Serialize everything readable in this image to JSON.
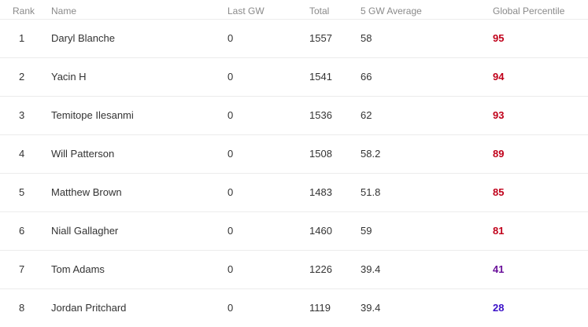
{
  "headers": {
    "rank": "Rank",
    "name": "Name",
    "last_gw": "Last GW",
    "total": "Total",
    "avg5": "5 GW Average",
    "percentile": "Global Percentile"
  },
  "colors": {
    "percentile_high": "#c0001a",
    "percentile_mid": "#6a0f9a",
    "percentile_low": "#3a10c8"
  },
  "rows": [
    {
      "rank": "1",
      "name": "Daryl Blanche",
      "last_gw": "0",
      "total": "1557",
      "avg5": "58",
      "percentile": "95",
      "percentile_color": "#c0001a"
    },
    {
      "rank": "2",
      "name": "Yacin H",
      "last_gw": "0",
      "total": "1541",
      "avg5": "66",
      "percentile": "94",
      "percentile_color": "#c0001a"
    },
    {
      "rank": "3",
      "name": "Temitope Ilesanmi",
      "last_gw": "0",
      "total": "1536",
      "avg5": "62",
      "percentile": "93",
      "percentile_color": "#c0001a"
    },
    {
      "rank": "4",
      "name": "Will Patterson",
      "last_gw": "0",
      "total": "1508",
      "avg5": "58.2",
      "percentile": "89",
      "percentile_color": "#c0001a"
    },
    {
      "rank": "5",
      "name": "Matthew Brown",
      "last_gw": "0",
      "total": "1483",
      "avg5": "51.8",
      "percentile": "85",
      "percentile_color": "#c0001a"
    },
    {
      "rank": "6",
      "name": "Niall Gallagher",
      "last_gw": "0",
      "total": "1460",
      "avg5": "59",
      "percentile": "81",
      "percentile_color": "#c0001a"
    },
    {
      "rank": "7",
      "name": "Tom Adams",
      "last_gw": "0",
      "total": "1226",
      "avg5": "39.4",
      "percentile": "41",
      "percentile_color": "#6a0f9a"
    },
    {
      "rank": "8",
      "name": "Jordan Pritchard",
      "last_gw": "0",
      "total": "1119",
      "avg5": "39.4",
      "percentile": "28",
      "percentile_color": "#3a10c8"
    }
  ]
}
